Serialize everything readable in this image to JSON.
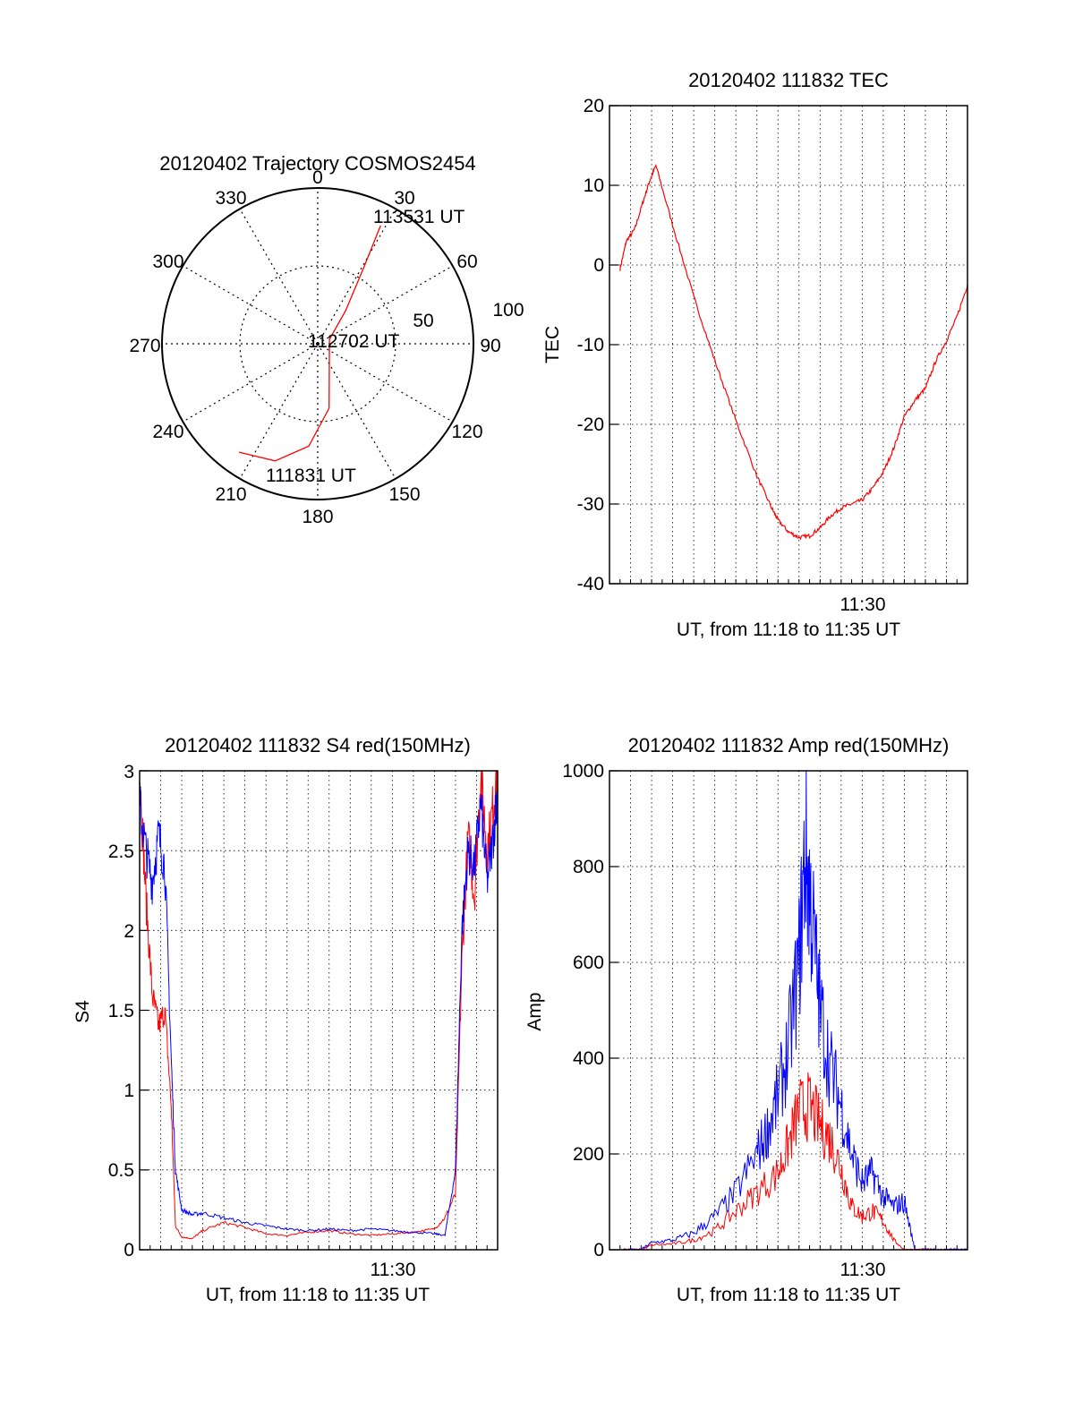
{
  "colors": {
    "red": "#ff0000",
    "blue": "#0000ff",
    "axis": "#000000",
    "grid": "#000000"
  },
  "chart_data": [
    {
      "type": "polar",
      "title": "20120402 Trajectory COSMOS2454",
      "azimuth_labels": [
        "0",
        "30",
        "60",
        "90",
        "120",
        "150",
        "180",
        "210",
        "240",
        "270",
        "300",
        "330"
      ],
      "radial_labels": [
        "50",
        "100"
      ],
      "trajectory": {
        "color": "red",
        "points": [
          [
            216,
            86
          ],
          [
            200,
            80
          ],
          [
            185,
            66
          ],
          [
            170,
            42
          ],
          [
            70,
            8
          ],
          [
            40,
            28
          ],
          [
            31,
            58
          ],
          [
            28,
            86
          ]
        ],
        "annotations": [
          "111831 UT",
          "112702 UT",
          "113531 UT"
        ]
      }
    },
    {
      "type": "line",
      "title": "20120402 111832 TEC",
      "ylabel": "TEC",
      "xlabel": "UT, from 11:18 to 11:35 UT",
      "xtick_label": "11:30",
      "yticks": [
        "-40",
        "-30",
        "-20",
        "-10",
        "0",
        "10",
        "20"
      ],
      "ylim": [
        -40,
        20
      ],
      "x_unit": "minutes after 11:18",
      "series": [
        {
          "color": "red",
          "x": [
            0.5,
            0.8,
            1.2,
            1.6,
            1.9,
            2.2,
            3.0,
            4.0,
            5.0,
            6.0,
            7.0,
            7.7,
            8.0,
            8.5,
            9.0,
            9.5,
            10.0,
            10.5,
            11.0,
            11.5,
            12.0,
            12.5,
            13.0,
            13.5,
            14.0,
            14.5,
            15.0,
            15.5,
            16.0,
            16.5,
            17.0
          ],
          "y": [
            -0.5,
            3.0,
            4.5,
            8.0,
            10.5,
            12.5,
            5.0,
            -4.0,
            -12.0,
            -19.5,
            -26.5,
            -30.5,
            -32.0,
            -33.5,
            -34.2,
            -34.0,
            -33.0,
            -31.5,
            -30.5,
            -30.0,
            -29.5,
            -28.0,
            -26.0,
            -23.0,
            -19.0,
            -17.0,
            -15.5,
            -12.0,
            -9.5,
            -6.5,
            -2.5
          ]
        }
      ]
    },
    {
      "type": "line",
      "title": "20120402 111832 S4 red(150MHz)",
      "ylabel": "S4",
      "xlabel": "UT, from 11:18 to 11:35 UT",
      "xtick_label": "11:30",
      "yticks": [
        "0",
        "0.5",
        "1",
        "1.5",
        "2",
        "2.5",
        "3"
      ],
      "ylim": [
        0,
        3
      ],
      "x_unit": "minutes after 11:18",
      "series": [
        {
          "color": "red",
          "x": [
            0.0,
            0.3,
            0.6,
            0.9,
            1.2,
            1.5,
            1.7,
            2.0,
            2.5,
            3.0,
            4.0,
            5.0,
            6.0,
            7.0,
            8.0,
            9.0,
            10.0,
            11.0,
            12.0,
            13.0,
            14.0,
            14.5,
            15.0,
            15.3,
            15.6,
            15.9,
            16.2,
            16.5,
            16.8,
            17.0
          ],
          "y": [
            3.0,
            2.2,
            1.6,
            1.4,
            1.5,
            0.9,
            0.15,
            0.08,
            0.07,
            0.12,
            0.17,
            0.14,
            0.1,
            0.09,
            0.11,
            0.12,
            0.1,
            0.09,
            0.1,
            0.11,
            0.13,
            0.2,
            0.35,
            1.8,
            2.6,
            2.2,
            3.0,
            2.5,
            2.8,
            3.0
          ]
        },
        {
          "color": "blue",
          "x": [
            0.0,
            0.3,
            0.6,
            0.9,
            1.2,
            1.5,
            1.7,
            2.0,
            2.5,
            3.0,
            4.0,
            5.0,
            6.0,
            7.0,
            8.0,
            9.0,
            10.0,
            11.0,
            12.0,
            13.0,
            14.0,
            14.5,
            15.0,
            15.3,
            15.6,
            15.9,
            16.2,
            16.5,
            16.8,
            17.0
          ],
          "y": [
            2.8,
            2.5,
            2.3,
            2.6,
            2.4,
            1.2,
            0.5,
            0.25,
            0.22,
            0.23,
            0.2,
            0.17,
            0.15,
            0.13,
            0.12,
            0.13,
            0.12,
            0.13,
            0.12,
            0.11,
            0.1,
            0.09,
            0.5,
            2.0,
            2.5,
            2.4,
            2.8,
            2.3,
            2.6,
            2.9
          ]
        }
      ]
    },
    {
      "type": "line",
      "title": "20120402 111832 Amp red(150MHz)",
      "ylabel": "Amp",
      "xlabel": "UT, from 11:18 to 11:35 UT",
      "xtick_label": "11:30",
      "yticks": [
        "0",
        "200",
        "400",
        "600",
        "800",
        "1000"
      ],
      "ylim": [
        0,
        1000
      ],
      "x_unit": "minutes after 11:18",
      "series": [
        {
          "color": "red",
          "x": [
            0.5,
            1.5,
            2.0,
            3.0,
            4.0,
            5.0,
            6.0,
            7.0,
            8.0,
            8.5,
            9.0,
            9.5,
            10.0,
            10.5,
            11.0,
            11.5,
            12.0,
            12.5,
            13.0,
            13.5,
            14.0,
            14.5,
            15.0,
            15.5,
            16.0,
            17.0
          ],
          "y": [
            0,
            0,
            10,
            12,
            20,
            40,
            80,
            120,
            160,
            220,
            290,
            300,
            260,
            230,
            170,
            90,
            70,
            80,
            60,
            20,
            0,
            0,
            0,
            0,
            0,
            0
          ]
        },
        {
          "color": "blue",
          "x": [
            0.5,
            1.5,
            2.0,
            3.0,
            4.0,
            5.0,
            6.0,
            7.0,
            7.5,
            8.0,
            8.5,
            9.0,
            9.3,
            9.6,
            10.0,
            10.5,
            11.0,
            11.5,
            12.0,
            12.5,
            13.0,
            13.5,
            14.0,
            14.5,
            15.0,
            15.5,
            16.0,
            17.0
          ],
          "y": [
            0,
            0,
            15,
            20,
            35,
            70,
            120,
            200,
            250,
            320,
            420,
            600,
            840,
            700,
            500,
            380,
            300,
            200,
            140,
            160,
            110,
            90,
            100,
            0,
            0,
            0,
            0,
            0
          ]
        }
      ]
    }
  ]
}
